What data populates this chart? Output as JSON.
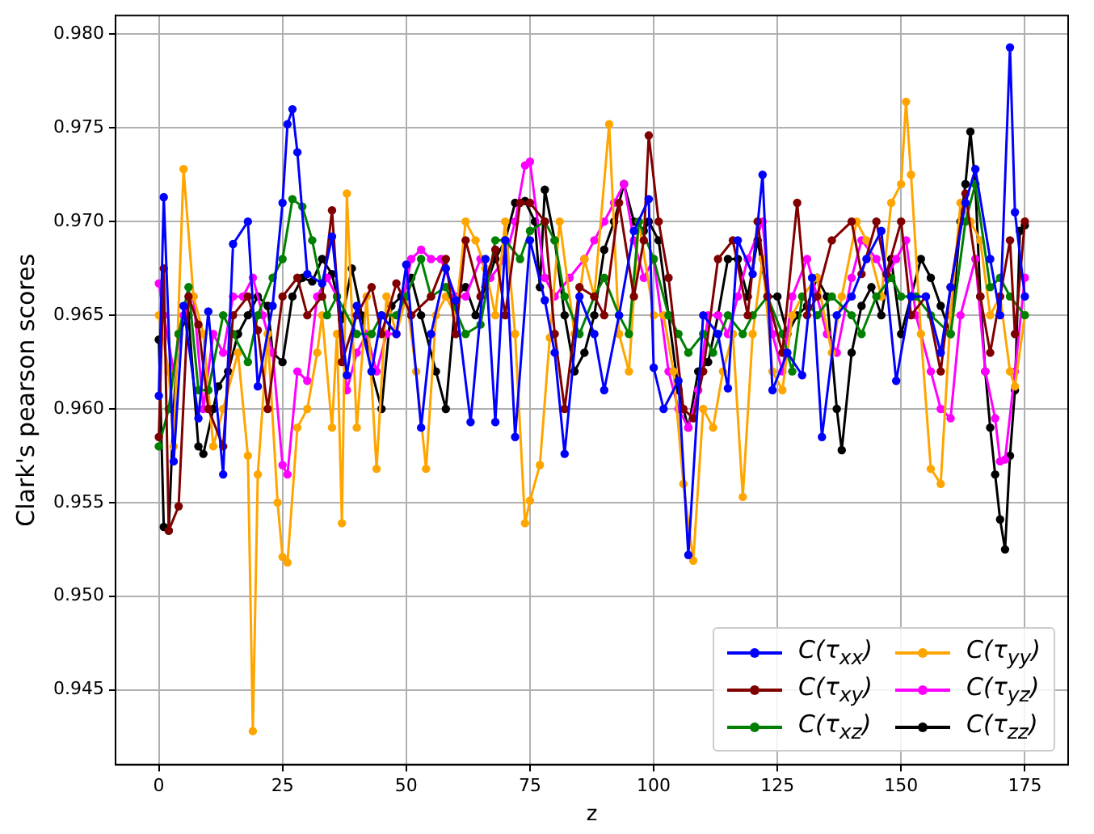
{
  "chart_data": {
    "type": "line",
    "xlabel": "z",
    "ylabel": "Clark's pearson scores",
    "xlim": [
      -8.75,
      183.75
    ],
    "xticks": [
      0,
      25,
      50,
      75,
      100,
      125,
      150,
      175
    ],
    "ylim": [
      0.941,
      0.981
    ],
    "yticks": [
      {
        "value": 0.945,
        "label": "0.945"
      },
      {
        "value": 0.95,
        "label": "0.950"
      },
      {
        "value": 0.955,
        "label": "0.955"
      },
      {
        "value": 0.96,
        "label": "0.960"
      },
      {
        "value": 0.965,
        "label": "0.965"
      },
      {
        "value": 0.97,
        "label": "0.970"
      },
      {
        "value": 0.975,
        "label": "0.975"
      },
      {
        "value": 0.98,
        "label": "0.980"
      }
    ],
    "grid": true,
    "legend": "bottom right",
    "marker": "circle",
    "line_style": "solid",
    "series": [
      {
        "name": "C(τ$_{xx}$)",
        "color": "#0000ff",
        "x": [
          0,
          1,
          3,
          5,
          8,
          10,
          13,
          15,
          18,
          20,
          23,
          25,
          26,
          27,
          28,
          30,
          33,
          35,
          38,
          40,
          43,
          45,
          48,
          50,
          53,
          55,
          58,
          60,
          63,
          66,
          68,
          70,
          72,
          75,
          78,
          80,
          82,
          85,
          88,
          90,
          93,
          96,
          99,
          100,
          102,
          105,
          107,
          110,
          113,
          115,
          117,
          120,
          122,
          124,
          127,
          130,
          132,
          134,
          137,
          140,
          143,
          146,
          149,
          152,
          155,
          158,
          160,
          163,
          165,
          168,
          170,
          172,
          173,
          175
        ],
        "values": [
          0.9607,
          0.9713,
          0.9572,
          0.9655,
          0.9595,
          0.9652,
          0.9565,
          0.9688,
          0.97,
          0.9612,
          0.9655,
          0.971,
          0.9752,
          0.976,
          0.9737,
          0.9672,
          0.9667,
          0.9692,
          0.9618,
          0.9655,
          0.962,
          0.965,
          0.964,
          0.9677,
          0.959,
          0.964,
          0.9675,
          0.9658,
          0.9593,
          0.968,
          0.9593,
          0.969,
          0.9585,
          0.969,
          0.9658,
          0.963,
          0.9576,
          0.966,
          0.964,
          0.961,
          0.965,
          0.9695,
          0.9712,
          0.9622,
          0.96,
          0.9615,
          0.9522,
          0.965,
          0.964,
          0.9611,
          0.969,
          0.9672,
          0.9725,
          0.961,
          0.963,
          0.9618,
          0.967,
          0.9585,
          0.965,
          0.966,
          0.968,
          0.9695,
          0.9615,
          0.966,
          0.966,
          0.963,
          0.9665,
          0.971,
          0.9728,
          0.968,
          0.965,
          0.9793,
          0.9705,
          0.966
        ]
      },
      {
        "name": "C(τ$_{xy}$)",
        "color": "#800000",
        "x": [
          0,
          1,
          2,
          4,
          6,
          8,
          10,
          13,
          15,
          18,
          20,
          22,
          25,
          28,
          30,
          33,
          35,
          37,
          40,
          43,
          45,
          48,
          51,
          55,
          58,
          60,
          62,
          65,
          68,
          70,
          73,
          75,
          78,
          80,
          82,
          85,
          88,
          90,
          93,
          96,
          98,
          99,
          101,
          103,
          106,
          108,
          110,
          113,
          116,
          119,
          121,
          123,
          126,
          129,
          131,
          133,
          136,
          140,
          142,
          145,
          147,
          150,
          152,
          155,
          158,
          160,
          163,
          166,
          168,
          170,
          172,
          173,
          175
        ],
        "values": [
          0.9585,
          0.9675,
          0.9535,
          0.9548,
          0.966,
          0.9645,
          0.96,
          0.958,
          0.965,
          0.966,
          0.9642,
          0.96,
          0.966,
          0.967,
          0.965,
          0.966,
          0.9706,
          0.9625,
          0.965,
          0.9665,
          0.964,
          0.9667,
          0.965,
          0.966,
          0.968,
          0.964,
          0.969,
          0.966,
          0.9685,
          0.965,
          0.971,
          0.971,
          0.97,
          0.964,
          0.96,
          0.9665,
          0.966,
          0.965,
          0.971,
          0.966,
          0.969,
          0.9746,
          0.97,
          0.967,
          0.96,
          0.9595,
          0.962,
          0.968,
          0.969,
          0.965,
          0.97,
          0.966,
          0.963,
          0.971,
          0.965,
          0.966,
          0.969,
          0.97,
          0.9672,
          0.97,
          0.9672,
          0.97,
          0.965,
          0.966,
          0.962,
          0.9665,
          0.9715,
          0.966,
          0.963,
          0.966,
          0.969,
          0.964,
          0.97
        ]
      },
      {
        "name": "C(τ$_{xz}$)",
        "color": "#008000",
        "x": [
          0,
          2,
          4,
          6,
          8,
          10,
          13,
          15,
          18,
          20,
          23,
          25,
          27,
          29,
          31,
          34,
          36,
          40,
          43,
          45,
          48,
          50,
          53,
          55,
          58,
          62,
          65,
          68,
          70,
          73,
          75,
          78,
          80,
          82,
          85,
          88,
          90,
          93,
          95,
          97,
          100,
          103,
          105,
          107,
          110,
          112,
          115,
          118,
          120,
          123,
          126,
          128,
          130,
          133,
          136,
          140,
          142,
          145,
          148,
          150,
          153,
          156,
          160,
          163,
          165,
          168,
          170,
          172,
          175
        ],
        "values": [
          0.958,
          0.96,
          0.964,
          0.9665,
          0.961,
          0.961,
          0.965,
          0.964,
          0.9625,
          0.965,
          0.967,
          0.968,
          0.9712,
          0.9708,
          0.969,
          0.965,
          0.966,
          0.964,
          0.964,
          0.965,
          0.965,
          0.966,
          0.968,
          0.966,
          0.9665,
          0.964,
          0.9645,
          0.969,
          0.969,
          0.968,
          0.9695,
          0.97,
          0.969,
          0.966,
          0.964,
          0.966,
          0.967,
          0.965,
          0.964,
          0.97,
          0.968,
          0.965,
          0.964,
          0.963,
          0.964,
          0.963,
          0.965,
          0.964,
          0.965,
          0.966,
          0.964,
          0.962,
          0.966,
          0.965,
          0.966,
          0.965,
          0.964,
          0.966,
          0.967,
          0.966,
          0.966,
          0.965,
          0.964,
          0.97,
          0.972,
          0.9665,
          0.967,
          0.966,
          0.965
        ]
      },
      {
        "name": "C(τ$_{yy}$)",
        "color": "#ffa500",
        "x": [
          0,
          2,
          3,
          5,
          7,
          9,
          11,
          13,
          16,
          18,
          19,
          20,
          22,
          24,
          25,
          26,
          28,
          30,
          32,
          33,
          35,
          36,
          37,
          38,
          40,
          42,
          44,
          46,
          48,
          50,
          52,
          54,
          56,
          58,
          60,
          62,
          64,
          66,
          68,
          70,
          72,
          74,
          75,
          77,
          79,
          81,
          84,
          86,
          88,
          91,
          93,
          95,
          97,
          100,
          102,
          104,
          106,
          108,
          110,
          112,
          114,
          116,
          118,
          120,
          122,
          124,
          126,
          128,
          130,
          133,
          136,
          138,
          141,
          143,
          146,
          148,
          150,
          151,
          152,
          154,
          156,
          158,
          160,
          162,
          164,
          166,
          168,
          170,
          172,
          173,
          175
        ],
        "values": [
          0.965,
          0.962,
          0.958,
          0.9728,
          0.966,
          0.964,
          0.958,
          0.96,
          0.963,
          0.9575,
          0.9428,
          0.9565,
          0.964,
          0.955,
          0.9521,
          0.9518,
          0.959,
          0.96,
          0.963,
          0.965,
          0.959,
          0.964,
          0.9539,
          0.9715,
          0.959,
          0.966,
          0.9568,
          0.966,
          0.964,
          0.966,
          0.962,
          0.9568,
          0.965,
          0.966,
          0.965,
          0.97,
          0.969,
          0.9675,
          0.965,
          0.97,
          0.964,
          0.9539,
          0.9551,
          0.957,
          0.9638,
          0.97,
          0.964,
          0.968,
          0.966,
          0.9752,
          0.964,
          0.962,
          0.97,
          0.965,
          0.965,
          0.962,
          0.956,
          0.9519,
          0.96,
          0.959,
          0.962,
          0.964,
          0.9553,
          0.964,
          0.968,
          0.962,
          0.961,
          0.965,
          0.966,
          0.967,
          0.963,
          0.966,
          0.97,
          0.969,
          0.966,
          0.971,
          0.972,
          0.9764,
          0.9725,
          0.964,
          0.9568,
          0.956,
          0.965,
          0.971,
          0.97,
          0.969,
          0.965,
          0.966,
          0.962,
          0.9612,
          0.965
        ]
      },
      {
        "name": "C(τ$_{yz}$)",
        "color": "#ff00ff",
        "x": [
          0,
          1,
          3,
          5,
          7,
          9,
          11,
          13,
          15,
          17,
          19,
          21,
          23,
          25,
          26,
          28,
          30,
          32,
          34,
          36,
          38,
          40,
          42,
          44,
          46,
          48,
          51,
          53,
          55,
          57,
          60,
          62,
          65,
          67,
          70,
          72,
          74,
          75,
          78,
          80,
          83,
          86,
          88,
          90,
          92,
          94,
          96,
          98,
          100,
          103,
          105,
          107,
          109,
          111,
          113,
          115,
          117,
          119,
          122,
          124,
          126,
          128,
          131,
          133,
          135,
          137,
          140,
          142,
          145,
          147,
          149,
          151,
          153,
          156,
          158,
          160,
          162,
          165,
          167,
          169,
          170,
          171,
          173,
          175
        ],
        "values": [
          0.9667,
          0.965,
          0.962,
          0.965,
          0.966,
          0.96,
          0.964,
          0.963,
          0.966,
          0.966,
          0.967,
          0.965,
          0.963,
          0.957,
          0.9565,
          0.962,
          0.9615,
          0.966,
          0.967,
          0.966,
          0.961,
          0.963,
          0.964,
          0.962,
          0.964,
          0.964,
          0.968,
          0.9685,
          0.968,
          0.968,
          0.966,
          0.966,
          0.968,
          0.967,
          0.968,
          0.97,
          0.973,
          0.9732,
          0.967,
          0.966,
          0.967,
          0.968,
          0.969,
          0.97,
          0.971,
          0.972,
          0.969,
          0.967,
          0.968,
          0.962,
          0.96,
          0.959,
          0.961,
          0.965,
          0.965,
          0.964,
          0.966,
          0.968,
          0.97,
          0.964,
          0.962,
          0.966,
          0.968,
          0.966,
          0.964,
          0.963,
          0.967,
          0.969,
          0.968,
          0.967,
          0.968,
          0.969,
          0.965,
          0.962,
          0.96,
          0.9595,
          0.965,
          0.968,
          0.962,
          0.9595,
          0.9572,
          0.9573,
          0.962,
          0.967
        ]
      },
      {
        "name": "C(τ$_{zz}$)",
        "color": "#000000",
        "x": [
          0,
          1,
          2,
          3,
          4,
          6,
          8,
          9,
          11,
          12,
          14,
          16,
          18,
          20,
          22,
          23,
          25,
          27,
          29,
          31,
          33,
          35,
          37,
          39,
          41,
          43,
          45,
          47,
          49,
          51,
          53,
          56,
          58,
          60,
          62,
          64,
          66,
          68,
          70,
          72,
          74,
          76,
          77,
          78,
          80,
          82,
          84,
          86,
          88,
          90,
          92,
          94,
          96,
          98,
          99,
          101,
          103,
          105,
          107,
          109,
          111,
          113,
          115,
          117,
          119,
          121,
          123,
          125,
          127,
          129,
          131,
          133,
          135,
          137,
          138,
          140,
          142,
          144,
          146,
          148,
          150,
          152,
          154,
          156,
          158,
          160,
          162,
          163,
          164,
          165,
          166,
          167,
          168,
          169,
          170,
          171,
          172,
          173,
          174,
          175
        ],
        "values": [
          0.9637,
          0.9537,
          0.9535,
          0.96,
          0.964,
          0.965,
          0.958,
          0.9576,
          0.96,
          0.9612,
          0.962,
          0.964,
          0.965,
          0.966,
          0.9655,
          0.963,
          0.9625,
          0.966,
          0.967,
          0.9668,
          0.968,
          0.9672,
          0.9648,
          0.9675,
          0.965,
          0.962,
          0.96,
          0.9655,
          0.966,
          0.967,
          0.965,
          0.962,
          0.96,
          0.966,
          0.9665,
          0.965,
          0.9665,
          0.968,
          0.969,
          0.971,
          0.9711,
          0.97,
          0.9665,
          0.9717,
          0.969,
          0.965,
          0.962,
          0.963,
          0.965,
          0.9685,
          0.97,
          0.972,
          0.97,
          0.9695,
          0.97,
          0.969,
          0.965,
          0.961,
          0.959,
          0.962,
          0.9625,
          0.965,
          0.968,
          0.968,
          0.966,
          0.969,
          0.966,
          0.966,
          0.964,
          0.965,
          0.9655,
          0.967,
          0.966,
          0.96,
          0.9578,
          0.963,
          0.9655,
          0.9665,
          0.965,
          0.968,
          0.964,
          0.966,
          0.968,
          0.967,
          0.9655,
          0.964,
          0.97,
          0.972,
          0.9748,
          0.972,
          0.966,
          0.962,
          0.959,
          0.9565,
          0.9541,
          0.9525,
          0.9575,
          0.961,
          0.9695,
          0.9698
        ]
      }
    ]
  }
}
